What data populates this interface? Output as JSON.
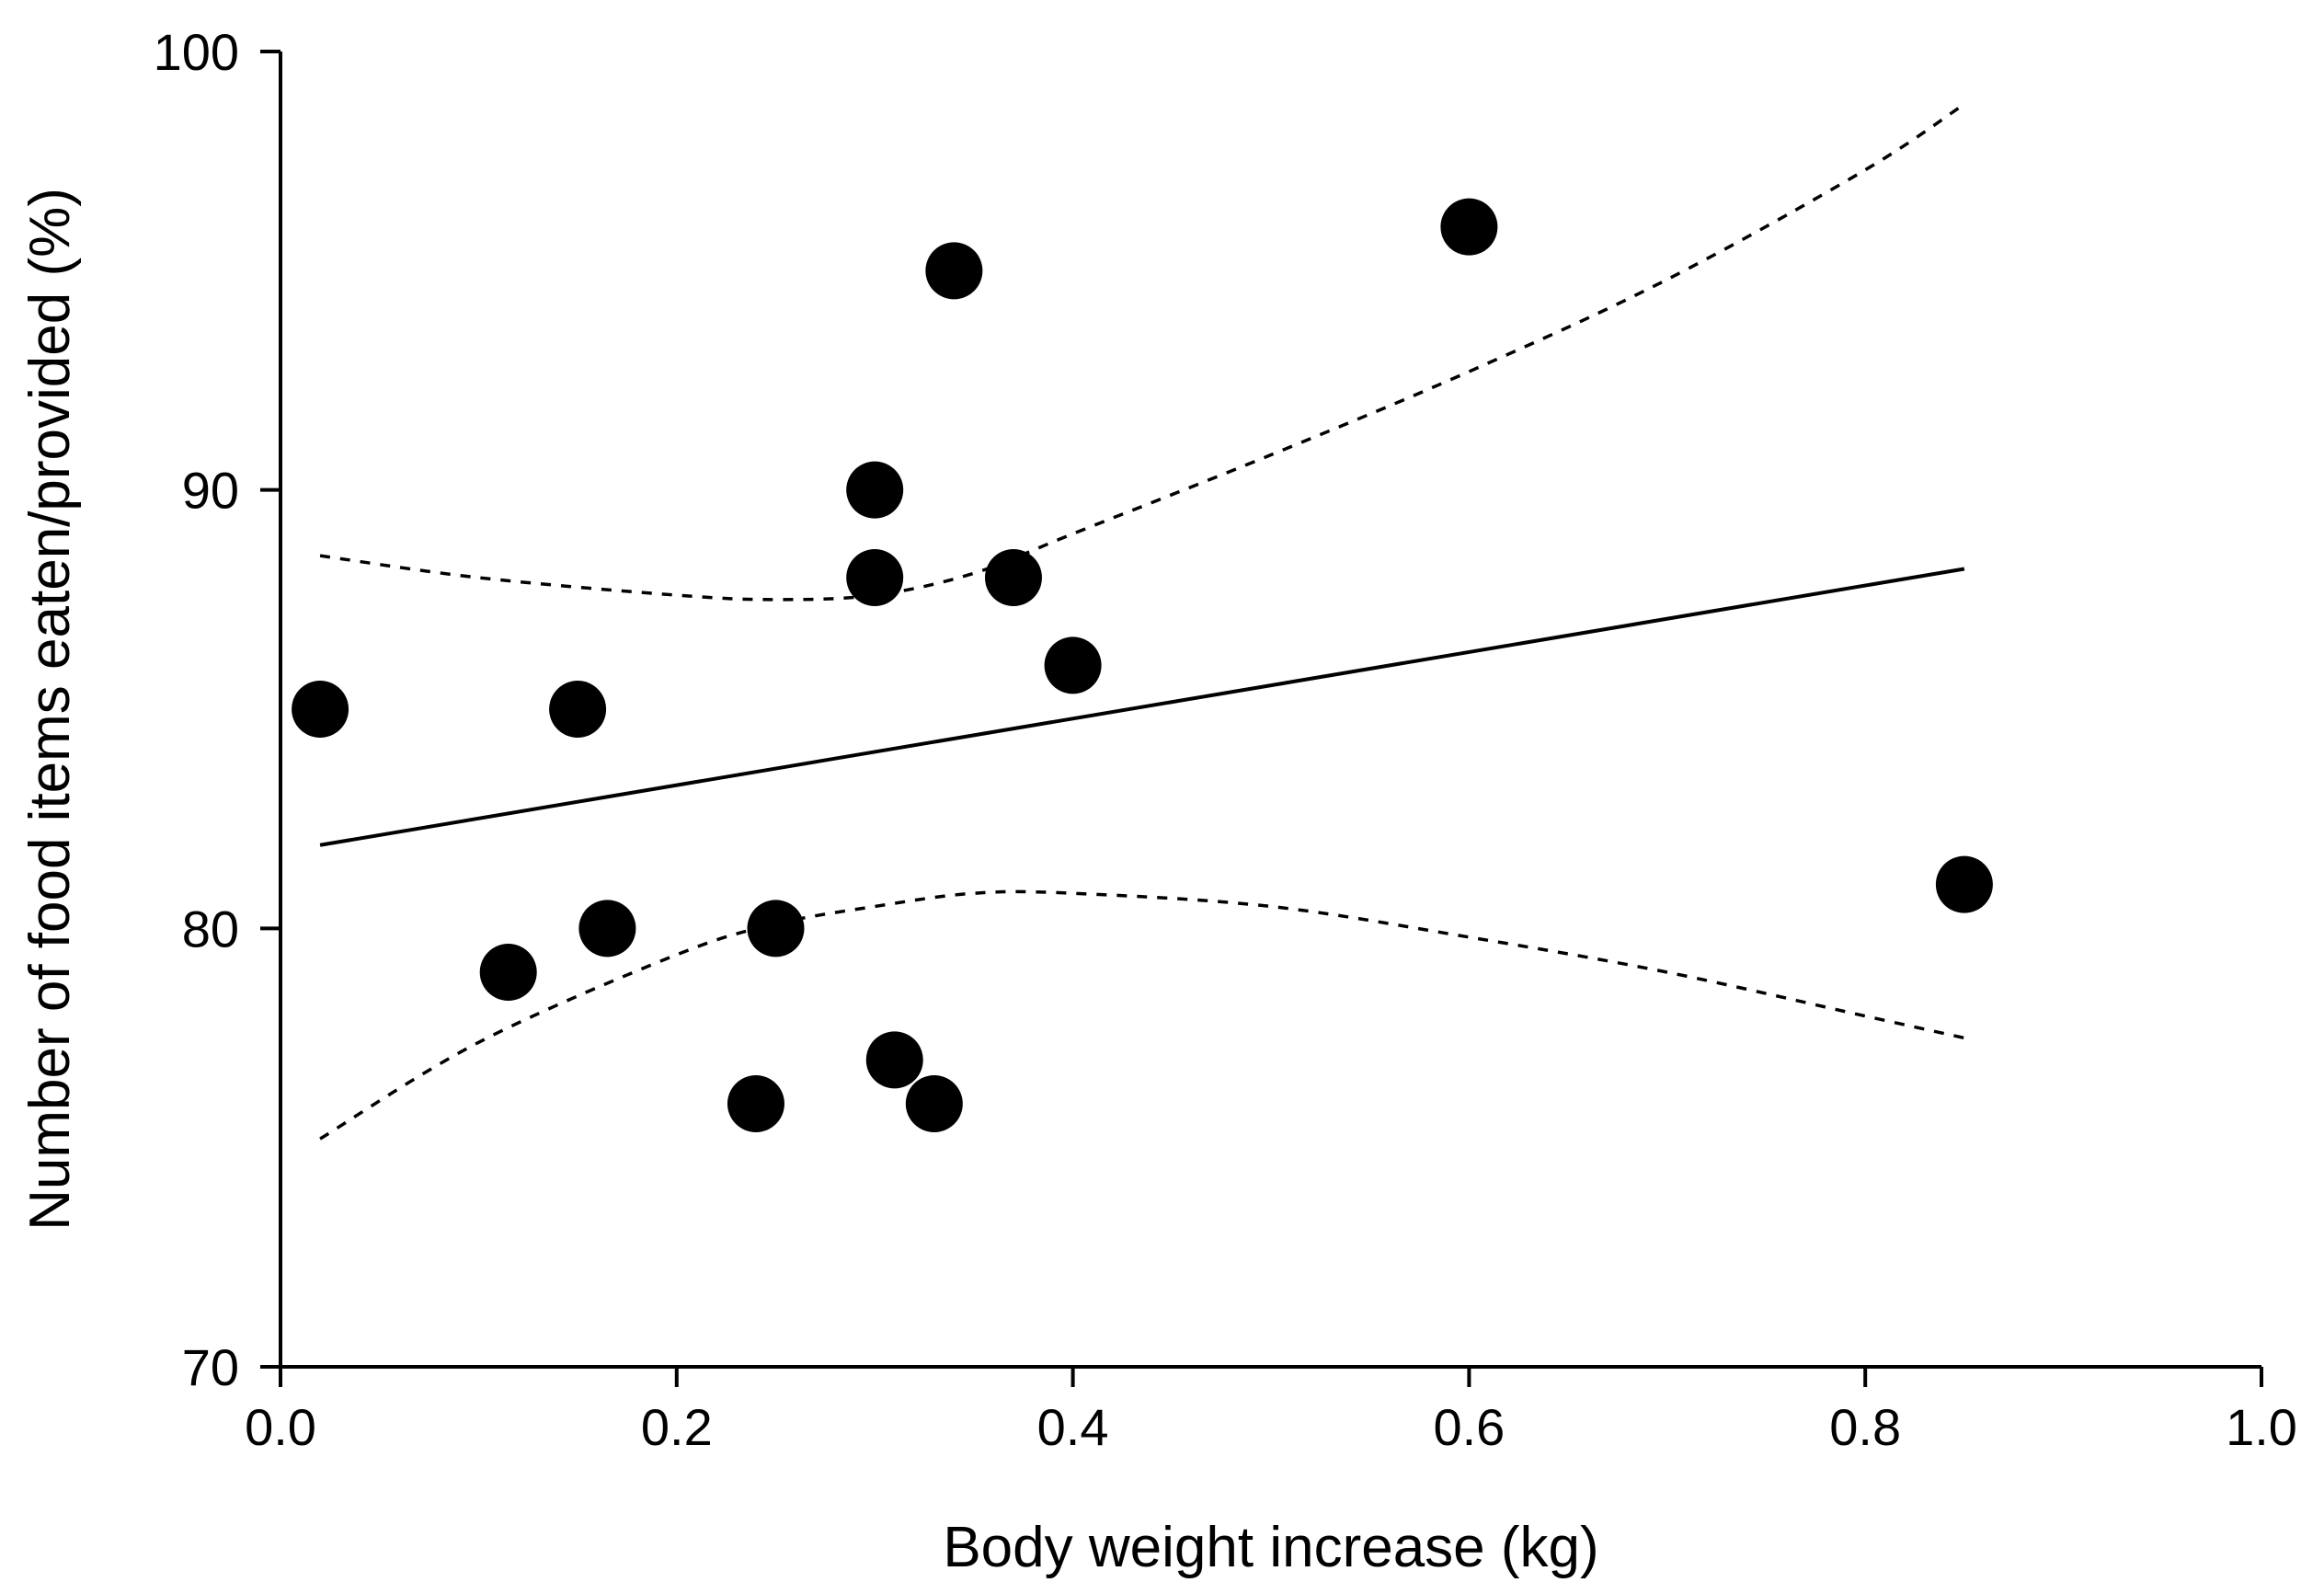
{
  "chart_data": {
    "type": "scatter",
    "xlabel": "Body weight increase (kg)",
    "ylabel": "Number of food items eaten/provided (%)",
    "xlim": [
      0.0,
      1.0
    ],
    "ylim": [
      70,
      100
    ],
    "x_ticks": [
      "0.0",
      "0.2",
      "0.4",
      "0.6",
      "0.8",
      "1.0"
    ],
    "y_ticks": [
      "70",
      "80",
      "90",
      "100"
    ],
    "grid": false,
    "points": [
      {
        "x": 0.02,
        "y": 85
      },
      {
        "x": 0.115,
        "y": 79
      },
      {
        "x": 0.15,
        "y": 85
      },
      {
        "x": 0.165,
        "y": 80
      },
      {
        "x": 0.24,
        "y": 76
      },
      {
        "x": 0.25,
        "y": 80
      },
      {
        "x": 0.3,
        "y": 90
      },
      {
        "x": 0.3,
        "y": 88
      },
      {
        "x": 0.31,
        "y": 77
      },
      {
        "x": 0.33,
        "y": 76
      },
      {
        "x": 0.34,
        "y": 95
      },
      {
        "x": 0.37,
        "y": 88
      },
      {
        "x": 0.4,
        "y": 86
      },
      {
        "x": 0.6,
        "y": 96
      },
      {
        "x": 0.85,
        "y": 81
      }
    ],
    "regression_line": {
      "x": [
        0.02,
        0.85
      ],
      "y": [
        81.9,
        88.2
      ]
    },
    "ci_upper": {
      "x": [
        0.02,
        0.1,
        0.2,
        0.25,
        0.3,
        0.35,
        0.4,
        0.5,
        0.6,
        0.7,
        0.8,
        0.85
      ],
      "y": [
        88.5,
        88.0,
        87.6,
        87.5,
        87.6,
        88.1,
        89.0,
        90.8,
        92.7,
        94.8,
        97.3,
        98.8
      ]
    },
    "ci_lower": {
      "x": [
        0.02,
        0.1,
        0.2,
        0.25,
        0.3,
        0.35,
        0.4,
        0.5,
        0.6,
        0.7,
        0.8,
        0.85
      ],
      "y": [
        75.2,
        77.4,
        79.4,
        80.1,
        80.5,
        80.8,
        80.8,
        80.5,
        79.8,
        79.0,
        78.0,
        77.5
      ]
    }
  }
}
